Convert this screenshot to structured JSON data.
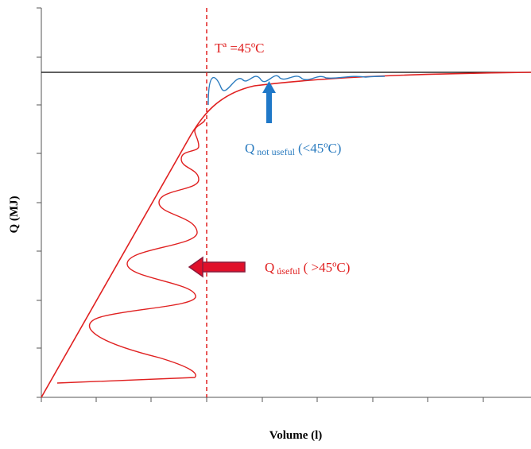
{
  "axes": {
    "x_label": "Volume (l)",
    "y_label": "Q (MJ)"
  },
  "annotations": {
    "temperature_line": "Tª =45ºC",
    "not_useful": {
      "symbol": "Q",
      "subscript": "not useful",
      "condition": "(<45ºC)"
    },
    "useful": {
      "symbol": "Q",
      "subscript": "úseful",
      "condition": "( >45ºC)"
    }
  }
}
